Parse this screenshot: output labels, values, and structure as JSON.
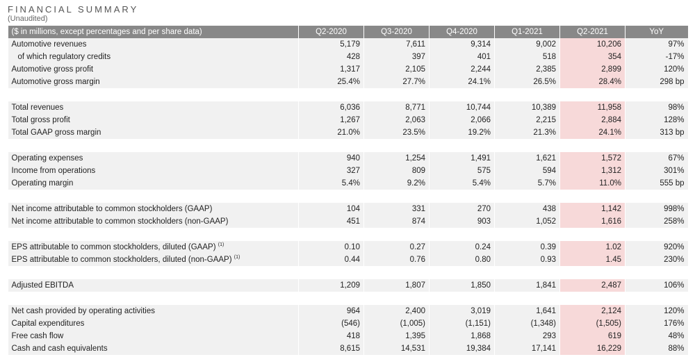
{
  "header": {
    "title": "FINANCIAL SUMMARY",
    "subtitle": "(Unaudited)"
  },
  "table": {
    "columns": [
      "($ in millions, except percentages and per share data)",
      "Q2-2020",
      "Q3-2020",
      "Q4-2020",
      "Q1-2021",
      "Q2-2021",
      "YoY"
    ],
    "highlight_color": "#f7d9d9",
    "header_color": "#888888",
    "groups": [
      [
        {
          "label": "Automotive revenues",
          "values": [
            "5,179",
            "7,611",
            "9,314",
            "9,002",
            "10,206",
            "97%"
          ]
        },
        {
          "label": "of which regulatory credits",
          "indent": true,
          "values": [
            "428",
            "397",
            "401",
            "518",
            "354",
            "-17%"
          ]
        },
        {
          "label": "Automotive gross profit",
          "values": [
            "1,317",
            "2,105",
            "2,244",
            "2,385",
            "2,899",
            "120%"
          ]
        },
        {
          "label": "Automotive gross margin",
          "values": [
            "25.4%",
            "27.7%",
            "24.1%",
            "26.5%",
            "28.4%",
            "298 bp"
          ]
        }
      ],
      [
        {
          "label": "Total revenues",
          "values": [
            "6,036",
            "8,771",
            "10,744",
            "10,389",
            "11,958",
            "98%"
          ]
        },
        {
          "label": "Total gross profit",
          "values": [
            "1,267",
            "2,063",
            "2,066",
            "2,215",
            "2,884",
            "128%"
          ]
        },
        {
          "label": "Total GAAP gross margin",
          "values": [
            "21.0%",
            "23.5%",
            "19.2%",
            "21.3%",
            "24.1%",
            "313 bp"
          ]
        }
      ],
      [
        {
          "label": "Operating expenses",
          "values": [
            "940",
            "1,254",
            "1,491",
            "1,621",
            "1,572",
            "67%"
          ]
        },
        {
          "label": "Income from operations",
          "values": [
            "327",
            "809",
            "575",
            "594",
            "1,312",
            "301%"
          ]
        },
        {
          "label": "Operating margin",
          "values": [
            "5.4%",
            "9.2%",
            "5.4%",
            "5.7%",
            "11.0%",
            "555 bp"
          ]
        }
      ],
      [
        {
          "label": "Net income attributable to common stockholders (GAAP)",
          "values": [
            "104",
            "331",
            "270",
            "438",
            "1,142",
            "998%"
          ]
        },
        {
          "label": "Net income attributable to common stockholders (non-GAAP)",
          "values": [
            "451",
            "874",
            "903",
            "1,052",
            "1,616",
            "258%"
          ]
        }
      ],
      [
        {
          "label": "EPS attributable to common stockholders, diluted (GAAP)",
          "sup": "(1)",
          "values": [
            "0.10",
            "0.27",
            "0.24",
            "0.39",
            "1.02",
            "920%"
          ]
        },
        {
          "label": "EPS attributable to common stockholders, diluted (non-GAAP)",
          "sup": "(1)",
          "values": [
            "0.44",
            "0.76",
            "0.80",
            "0.93",
            "1.45",
            "230%"
          ]
        }
      ],
      [
        {
          "label": "Adjusted EBITDA",
          "values": [
            "1,209",
            "1,807",
            "1,850",
            "1,841",
            "2,487",
            "106%"
          ]
        }
      ],
      [
        {
          "label": "Net cash provided by operating activities",
          "values": [
            "964",
            "2,400",
            "3,019",
            "1,641",
            "2,124",
            "120%"
          ]
        },
        {
          "label": "Capital expenditures",
          "values": [
            "(546)",
            "(1,005)",
            "(1,151)",
            "(1,348)",
            "(1,505)",
            "176%"
          ]
        },
        {
          "label": "Free cash flow",
          "values": [
            "418",
            "1,395",
            "1,868",
            "293",
            "619",
            "48%"
          ]
        },
        {
          "label": "Cash and cash equivalents",
          "values": [
            "8,615",
            "14,531",
            "19,384",
            "17,141",
            "16,229",
            "88%"
          ]
        }
      ]
    ]
  }
}
